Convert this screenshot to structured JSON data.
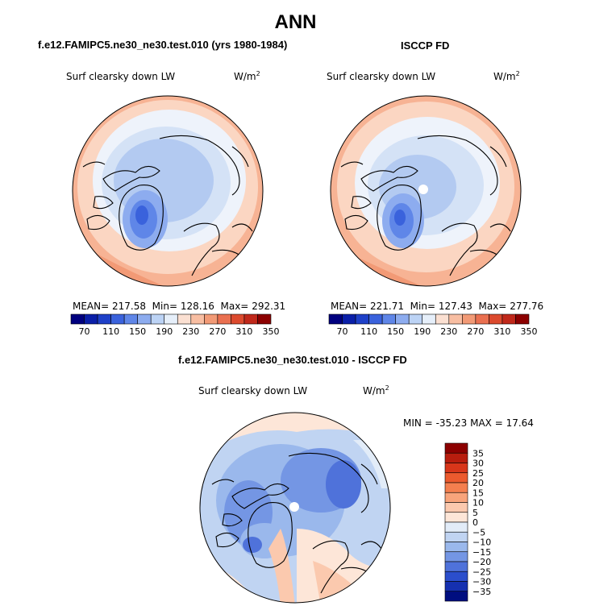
{
  "page": {
    "title": "ANN",
    "left_header": "f.e12.FAMIPC5.ne30_ne30.test.010 (yrs 1980-1984)",
    "right_header": "ISCCP FD",
    "diff_header": "f.e12.FAMIPC5.ne30_ne30.test.010 - ISCCP FD"
  },
  "colors": {
    "abs_levels": [
      "#00007f",
      "#0a1fa8",
      "#1e40c8",
      "#3a62dc",
      "#5f86e8",
      "#8dacef",
      "#bcd3f5",
      "#e6effa",
      "#fbe0d2",
      "#f8bea2",
      "#f29a76",
      "#ea7050",
      "#dc4a2e",
      "#c0281a",
      "#8c0000"
    ],
    "diff_levels": [
      "#8c0000",
      "#b81d0e",
      "#d8361a",
      "#ec5a2e",
      "#f47f4f",
      "#f8a47b",
      "#fbc9ae",
      "#fde6d8",
      "#e2ecf8",
      "#c0d4f2",
      "#9ab8ec",
      "#7496e4",
      "#4f72da",
      "#2b4ecc",
      "#1530b0",
      "#000e80"
    ]
  },
  "chart_data": [
    {
      "type": "heatmap",
      "projection": "north-polar-stereographic",
      "title": "f.e12.FAMIPC5.ne30_ne30.test.010 (yrs 1980-1984)",
      "variable": "Surf clearsky down LW",
      "units_label": "W/m",
      "units_exp": "2",
      "stats": {
        "mean_label": "MEAN=",
        "mean": "217.58",
        "min_label": "Min=",
        "min": "128.16",
        "max_label": "Max=",
        "max": "292.31"
      },
      "colorbar": {
        "orientation": "horizontal",
        "tick_labels": [
          "70",
          "110",
          "150",
          "190",
          "230",
          "270",
          "310",
          "350"
        ]
      }
    },
    {
      "type": "heatmap",
      "projection": "north-polar-stereographic",
      "title": "ISCCP FD",
      "variable": "Surf clearsky down LW",
      "units_label": "W/m",
      "units_exp": "2",
      "stats": {
        "mean_label": "MEAN=",
        "mean": "221.71",
        "min_label": "Min=",
        "min": "127.43",
        "max_label": "Max=",
        "max": "277.76"
      },
      "colorbar": {
        "orientation": "horizontal",
        "tick_labels": [
          "70",
          "110",
          "150",
          "190",
          "230",
          "270",
          "310",
          "350"
        ]
      }
    },
    {
      "type": "heatmap",
      "projection": "north-polar-stereographic",
      "title": "f.e12.FAMIPC5.ne30_ne30.test.010 - ISCCP FD",
      "variable": "Surf clearsky down LW",
      "units_label": "W/m",
      "units_exp": "2",
      "stats": {
        "min_label": "MIN =",
        "min": "-35.23",
        "max_label": "MAX =",
        "max": "17.64"
      },
      "colorbar": {
        "orientation": "vertical",
        "tick_labels": [
          "35",
          "30",
          "25",
          "20",
          "15",
          "10",
          "5",
          "0",
          "−5",
          "−10",
          "−15",
          "−20",
          "−25",
          "−30",
          "−35"
        ]
      }
    }
  ]
}
